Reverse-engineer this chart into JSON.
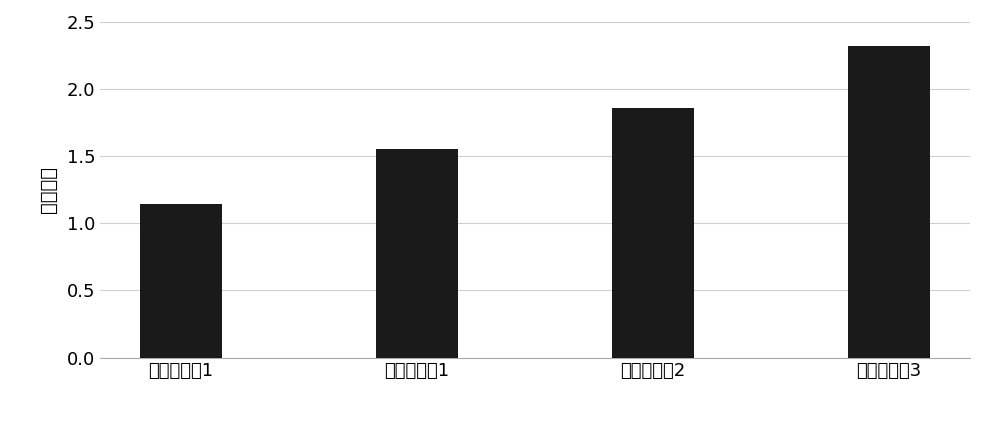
{
  "categories": [
    "应用对比例1",
    "应用实施例1",
    "应用实施例2",
    "应用实施例3"
  ],
  "values": [
    1.14,
    1.55,
    1.86,
    2.32
  ],
  "bar_color": "#1a1a1a",
  "ylabel": "粘性指标",
  "ylim": [
    0,
    2.5
  ],
  "yticks": [
    0,
    0.5,
    1.0,
    1.5,
    2.0,
    2.5
  ],
  "bar_width": 0.35,
  "background_color": "#ffffff",
  "grid_color": "#d0d0d0",
  "tick_fontsize": 13,
  "ylabel_fontsize": 14
}
